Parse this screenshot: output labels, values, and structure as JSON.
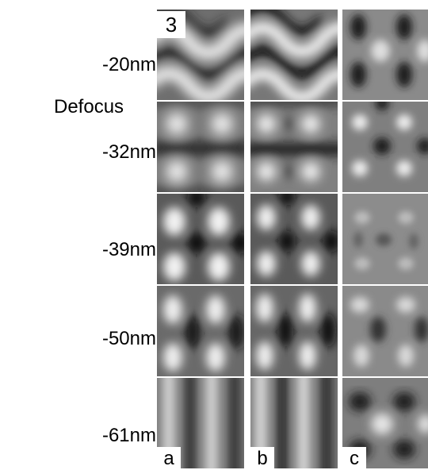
{
  "figure_number": "3",
  "side_label": "Defocus",
  "defocus_rows": [
    "-20nm",
    "-32nm",
    "-39nm",
    "-50nm",
    "-61nm"
  ],
  "column_labels": [
    "a",
    "b",
    "c"
  ],
  "image_description_colors": {
    "background": "#ffffff",
    "bright": "#e6e6e6",
    "dark": "#1a1a1a",
    "mid": "#8a8a8a"
  }
}
